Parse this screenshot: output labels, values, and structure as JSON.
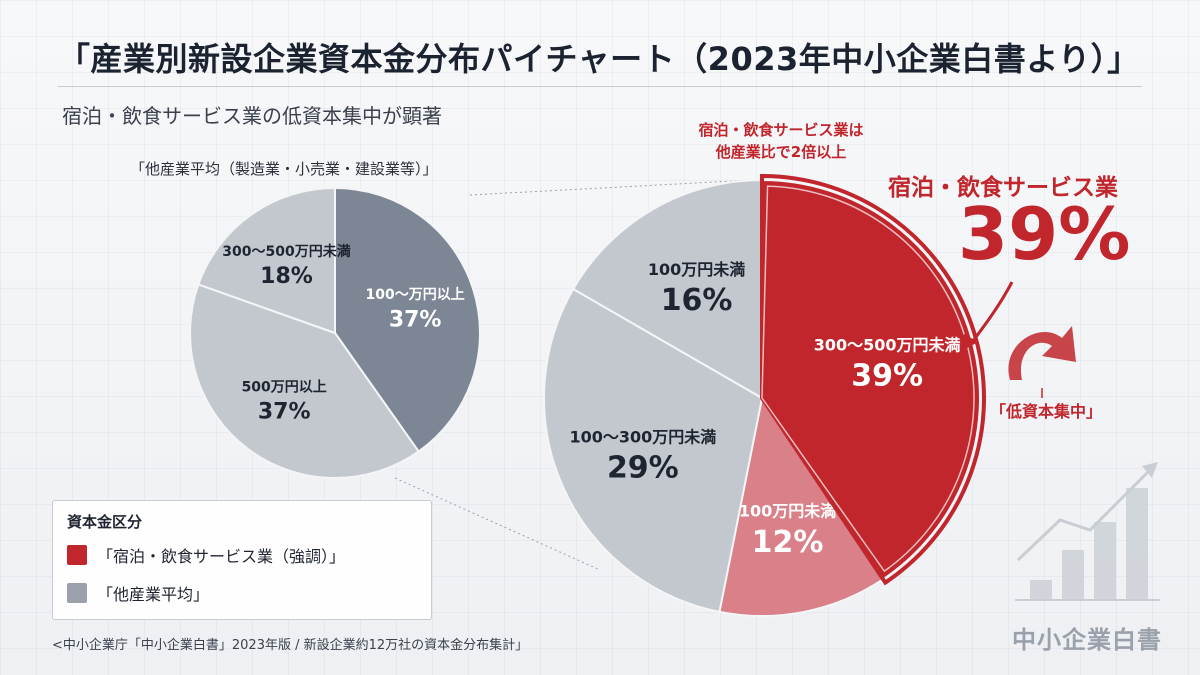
{
  "title": "「産業別新設企業資本金分布パイチャート（2023年中小企業白書より）」",
  "subtitle": "宿泊・飲食サービス業の低資本集中が顕著",
  "colors": {
    "highlight_red": "#c0262c",
    "light_red": "#d98088",
    "gray_light": "#c3c8cf",
    "gray_dark": "#7d8694"
  },
  "chart_data": [
    {
      "type": "pie",
      "title": "「他産業平均（製造業・小売業・建設業等）」",
      "slices": [
        {
          "label": "100〜万円以上",
          "value": 37,
          "display": "37%",
          "color": "#7d8694"
        },
        {
          "label": "500万円以上",
          "value": 37,
          "display": "37%",
          "color": "#c3c8cf"
        },
        {
          "label": "300〜500万円未満",
          "value": 18,
          "display": "18%",
          "color": "#c3c8cf"
        }
      ]
    },
    {
      "type": "pie",
      "title": "宿泊・飲食サービス業",
      "slices": [
        {
          "label": "300〜500万円未満",
          "value": 39,
          "display": "39%",
          "color": "#c0262c"
        },
        {
          "label": "100万円未満",
          "value": 12,
          "display": "12%",
          "color": "#d98088"
        },
        {
          "label": "100〜300万円未満",
          "value": 29,
          "display": "29%",
          "color": "#c3c8cf"
        },
        {
          "label": "100万円未満",
          "value": 16,
          "display": "16%",
          "color": "#c3c8cf"
        }
      ]
    }
  ],
  "annotations": {
    "red_note_line1": "宿泊・飲食サービス業は",
    "red_note_line2": "他産業比で2倍以上",
    "highlight_name": "宿泊・飲食サービス業",
    "highlight_value": "39%",
    "callout": "「低資本集中」"
  },
  "legend": {
    "title": "資本金区分",
    "items": [
      {
        "label": "「宿泊・飲食サービス業（強調）」",
        "color": "#c0262c"
      },
      {
        "label": "「他産業平均」",
        "color": "#9aa1ab"
      }
    ]
  },
  "source": "<中小企業庁「中小企業白書」2023年版 / 新設企業約12万社の資本金分布集計」",
  "brand": "中小企業白書"
}
